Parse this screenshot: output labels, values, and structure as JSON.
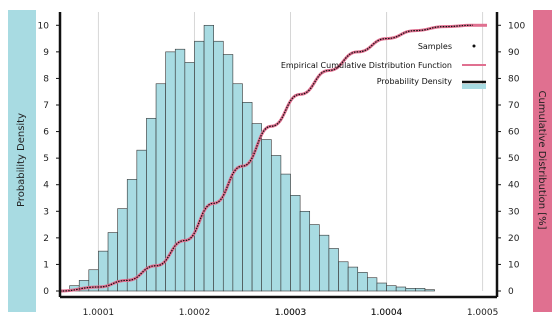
{
  "colors": {
    "background": "#ffffff",
    "grid": "#d6d6d6",
    "bar_fill": "#a8dbe2",
    "bar_stroke": "#333333",
    "ecdf_line": "#e07090",
    "density_line": "#111111",
    "samples_dot": "#111111",
    "left_panel": "#a8dbe2",
    "right_panel": "#e07090",
    "axis": "#111111"
  },
  "chart_data": {
    "type": "bar",
    "ylabel_left": "Probability Density",
    "ylabel_right": "Cumulative Distribution [%]",
    "x_ticks": [
      "1.0001",
      "1.0002",
      "1.0003",
      "1.0003",
      "1.0004",
      "1.0004",
      "1.0005"
    ],
    "x_tick_values": [
      1.0001,
      1.0002,
      1.0003,
      1.0003,
      1.0004,
      1.0004,
      1.0005
    ],
    "left_ticks": [
      "0",
      "1",
      "2",
      "3",
      "4",
      "5",
      "6",
      "7",
      "8",
      "9",
      "10"
    ],
    "right_ticks": [
      "0",
      "10",
      "20",
      "30",
      "40",
      "50",
      "60",
      "70",
      "80",
      "90",
      "100"
    ],
    "ylim_left": [
      0,
      10.5
    ],
    "ylim_right": [
      0,
      105
    ],
    "xlim": [
      1.00006,
      1.000515
    ],
    "grid": true,
    "legend_placement": "top-right",
    "legend": [
      {
        "label": "Samples",
        "style": "dot"
      },
      {
        "label": "Empirical Cumulative Distribution Function",
        "style": "ecdf"
      },
      {
        "label": "Probability Density",
        "style": "density"
      }
    ],
    "histogram": {
      "bin_start": 1.00007,
      "bin_width": 1e-05,
      "values": [
        0.2,
        0.4,
        0.8,
        1.5,
        2.2,
        3.1,
        4.2,
        5.3,
        6.5,
        7.8,
        9.0,
        9.1,
        8.6,
        9.4,
        10.0,
        9.4,
        8.9,
        7.8,
        7.1,
        6.3,
        5.7,
        5.1,
        4.4,
        3.6,
        3.0,
        2.5,
        2.1,
        1.6,
        1.1,
        0.9,
        0.7,
        0.5,
        0.3,
        0.2,
        0.15,
        0.1,
        0.1,
        0.05
      ]
    },
    "cdf": {
      "x": [
        1.00006,
        1.0001,
        1.00013,
        1.00016,
        1.00019,
        1.00022,
        1.00025,
        1.00028,
        1.00031,
        1.00034,
        1.00037,
        1.0004,
        1.00043,
        1.00046,
        1.00049
      ],
      "y": [
        0,
        1.5,
        4,
        9.5,
        19,
        33,
        47,
        62,
        74,
        83,
        90,
        95,
        98,
        99.5,
        100
      ]
    },
    "samples_note": ""
  }
}
